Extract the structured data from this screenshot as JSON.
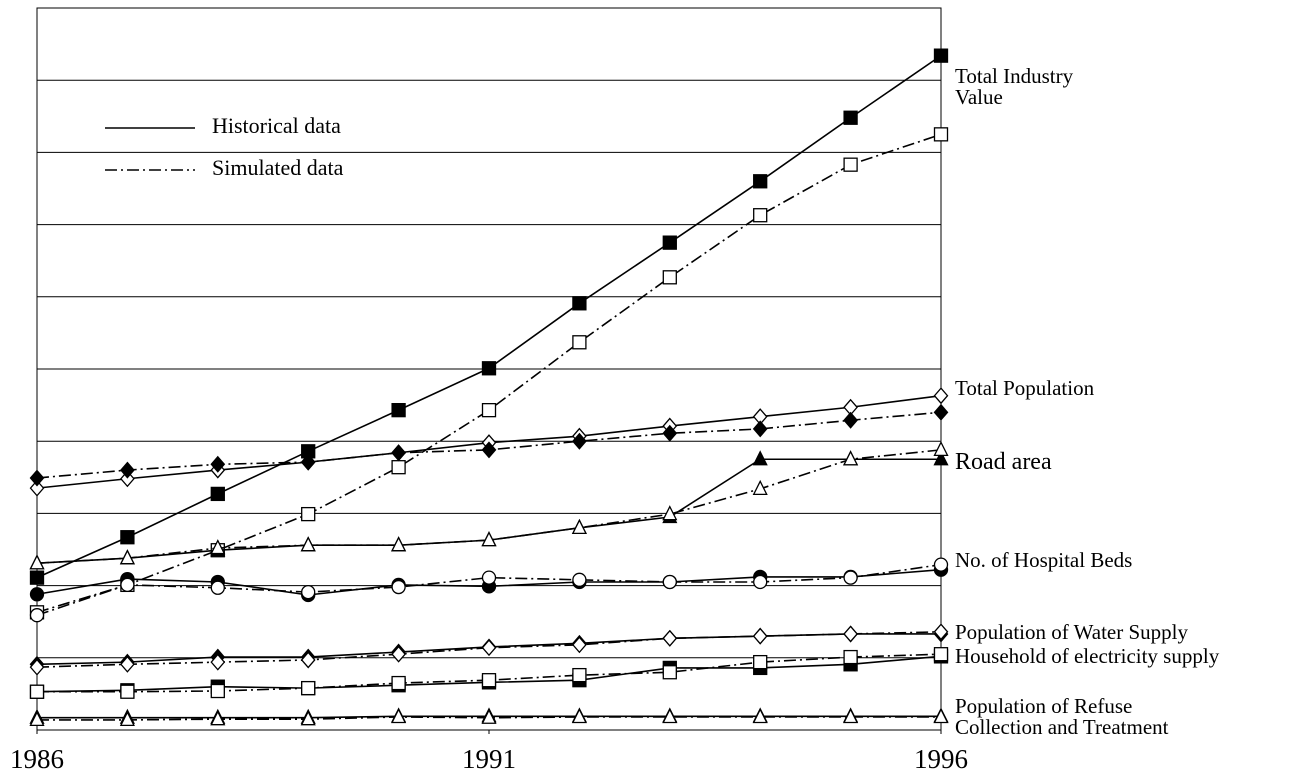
{
  "chart_data": {
    "type": "line",
    "x": [
      1986,
      1987,
      1988,
      1989,
      1990,
      1991,
      1992,
      1993,
      1994,
      1995,
      1996
    ],
    "xlim": [
      1986,
      1996
    ],
    "xticks": [
      1986,
      1991,
      1996
    ],
    "ylim": [
      0,
      10
    ],
    "yticks": [
      1,
      2,
      3,
      4,
      5,
      6,
      7,
      8,
      9
    ],
    "grid": true,
    "color": "#000000",
    "legend": [
      {
        "label": "Historical data",
        "dash": "solid"
      },
      {
        "label": "Simulated data",
        "dash": "dashdot"
      }
    ],
    "indicators": [
      {
        "name": "Total Industry Value",
        "marker": "square",
        "historical": {
          "fill": "filled",
          "values": [
            2.11,
            2.67,
            3.27,
            3.86,
            4.43,
            5.01,
            5.91,
            6.75,
            7.6,
            8.48,
            9.34
          ]
        },
        "simulated": {
          "fill": "open",
          "values": [
            1.63,
            2.01,
            2.49,
            2.99,
            3.64,
            4.43,
            5.37,
            6.27,
            7.13,
            7.83,
            8.25
          ]
        }
      },
      {
        "name": "Total Population",
        "marker": "diamond",
        "historical": {
          "fill": "open",
          "values": [
            3.35,
            3.48,
            3.6,
            3.71,
            3.84,
            3.98,
            4.07,
            4.21,
            4.34,
            4.47,
            4.63
          ]
        },
        "simulated": {
          "fill": "filled",
          "values": [
            3.49,
            3.6,
            3.68,
            3.71,
            3.84,
            3.88,
            4.0,
            4.11,
            4.17,
            4.29,
            4.4
          ]
        }
      },
      {
        "name": "Road area",
        "marker": "triangle",
        "historical": {
          "fill": "filled",
          "values": [
            2.31,
            2.38,
            2.49,
            2.56,
            2.56,
            2.63,
            2.8,
            2.95,
            3.75,
            3.75,
            3.75
          ]
        },
        "simulated": {
          "fill": "open",
          "values": [
            2.31,
            2.38,
            2.52,
            2.56,
            2.56,
            2.63,
            2.8,
            2.99,
            3.34,
            3.75,
            3.88
          ]
        }
      },
      {
        "name": "No. of Hospital Beds",
        "marker": "circle",
        "historical": {
          "fill": "filled",
          "values": [
            1.88,
            2.09,
            2.05,
            1.87,
            2.01,
            1.99,
            2.05,
            2.05,
            2.12,
            2.12,
            2.22
          ]
        },
        "simulated": {
          "fill": "open",
          "values": [
            1.59,
            2.01,
            1.97,
            1.91,
            1.98,
            2.11,
            2.08,
            2.05,
            2.05,
            2.11,
            2.29
          ]
        }
      },
      {
        "name": "Population of Water Supply",
        "marker": "diamond",
        "historical": {
          "fill": "filled",
          "values": [
            0.91,
            0.94,
            1.01,
            1.01,
            1.08,
            1.15,
            1.2,
            1.27,
            1.3,
            1.33,
            1.33
          ]
        },
        "simulated": {
          "fill": "open",
          "values": [
            0.87,
            0.91,
            0.94,
            0.97,
            1.05,
            1.14,
            1.18,
            1.27,
            1.3,
            1.33,
            1.36
          ]
        }
      },
      {
        "name": "Household of electricity supply",
        "marker": "square",
        "historical": {
          "fill": "filled",
          "values": [
            0.53,
            0.55,
            0.6,
            0.58,
            0.62,
            0.66,
            0.69,
            0.86,
            0.86,
            0.91,
            1.02
          ]
        },
        "simulated": {
          "fill": "open",
          "values": [
            0.53,
            0.53,
            0.54,
            0.58,
            0.65,
            0.69,
            0.76,
            0.8,
            0.94,
            1.01,
            1.05
          ]
        }
      },
      {
        "name": "Population of Refuse Collection and Treatment",
        "marker": "triangle",
        "historical": {
          "fill": "filled",
          "values": [
            0.17,
            0.17,
            0.17,
            0.17,
            0.19,
            0.19,
            0.19,
            0.19,
            0.19,
            0.19,
            0.19
          ]
        },
        "simulated": {
          "fill": "open",
          "values": [
            0.14,
            0.14,
            0.15,
            0.15,
            0.18,
            0.17,
            0.18,
            0.18,
            0.18,
            0.18,
            0.18
          ]
        }
      }
    ]
  }
}
